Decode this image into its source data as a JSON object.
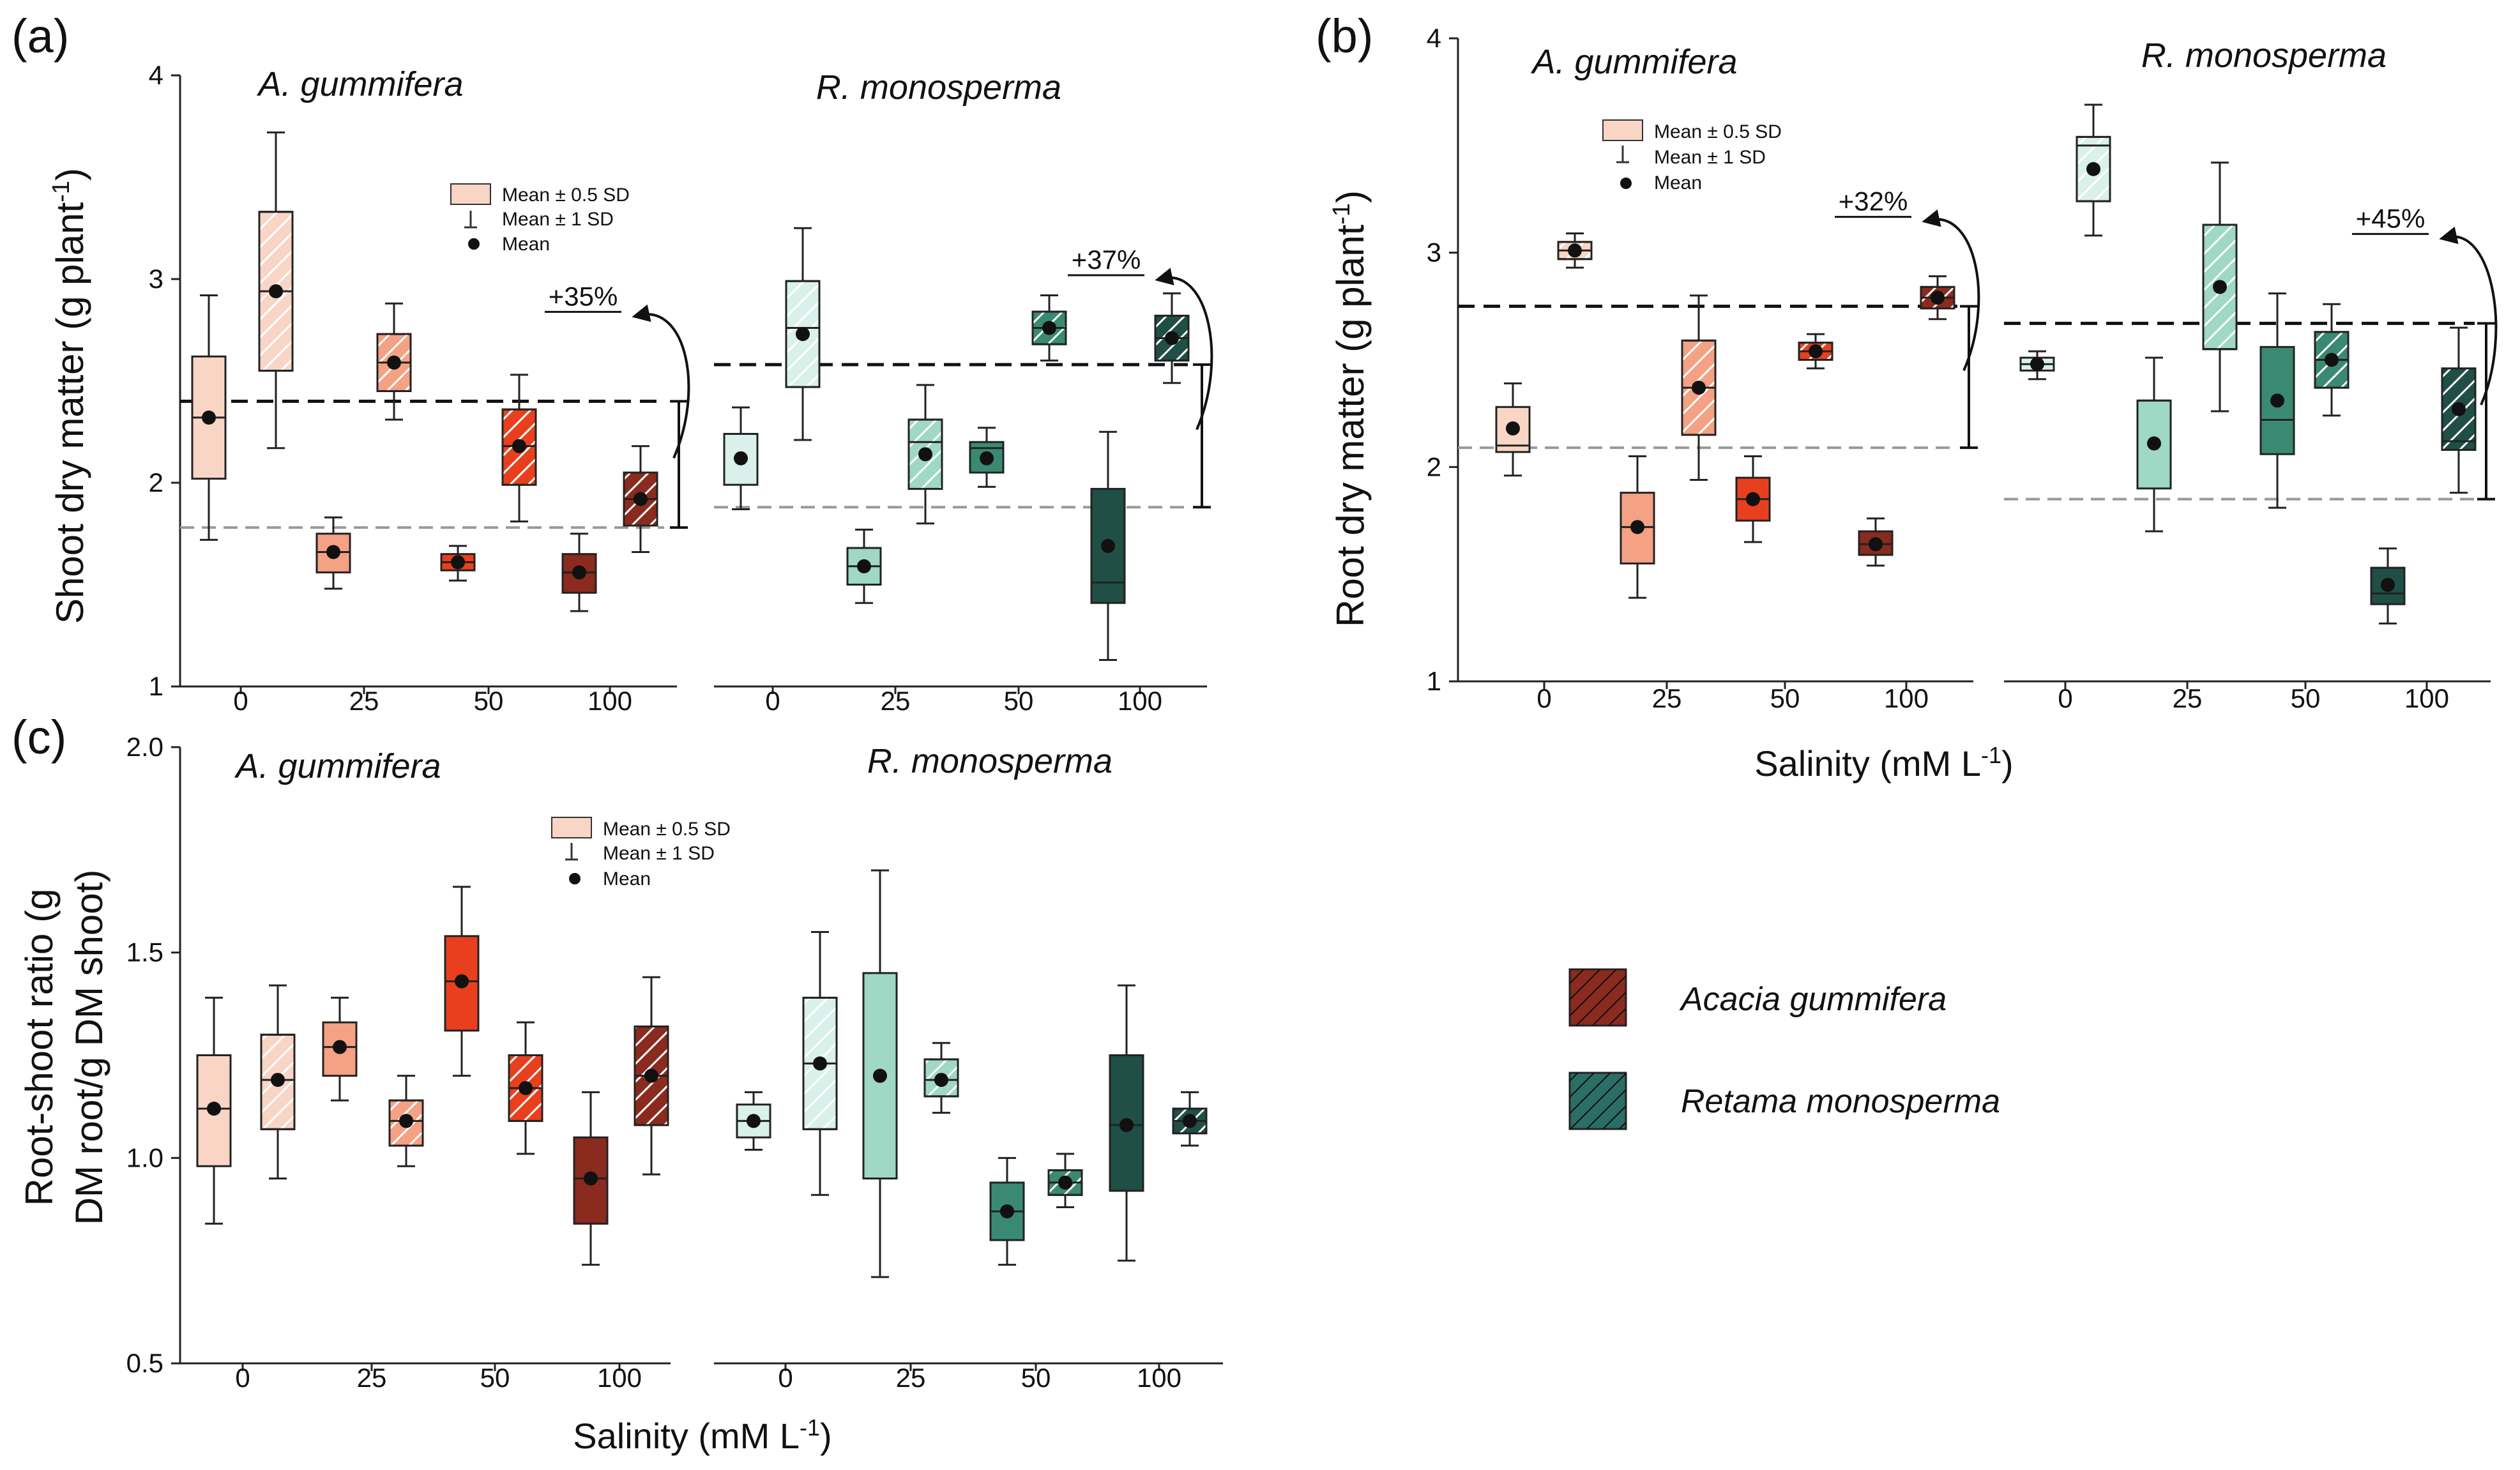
{
  "figure": {
    "xlabel_common": "Salinity (mM L",
    "xlabel_sup": "-1",
    "xlabel_end": ")",
    "legend_box_label": "Mean ± 0.5 SD",
    "legend_whisker_label": "Mean ± 1 SD",
    "legend_mean_label": "Mean",
    "species_legend": [
      {
        "label": "Acacia gummifera",
        "color": "#8b2a1e"
      },
      {
        "label": "Retama monosperma",
        "color": "#2a6e66"
      }
    ]
  },
  "colors": {
    "acacia": [
      "#f9d5c6",
      "#f4a184",
      "#e8401e",
      "#8b2a1e"
    ],
    "retama": [
      "#d9f1ea",
      "#9fd8c5",
      "#3a8a73",
      "#1f4f45"
    ],
    "black_dash": "#111111",
    "gray_dash": "#999999"
  },
  "chart_data": [
    {
      "type": "box",
      "panel_label": "(a)",
      "ylabel": "Shoot dry matter (g plant",
      "ylabel_sup": "-1",
      "ylabel_end": ")",
      "ylim": [
        1,
        4
      ],
      "yticks": [
        "1",
        "2",
        "3",
        "4"
      ],
      "xticks": [
        "0",
        "25",
        "50",
        "100"
      ],
      "groups": [
        {
          "species": "A. gummifera",
          "ref_black": 2.4,
          "ref_gray": 1.78,
          "annotation": "+35%",
          "boxes": [
            {
              "salinity": "0",
              "hatched": false,
              "mean": 2.32,
              "q1": 2.02,
              "q3": 2.62,
              "median": 2.32,
              "lo": 1.72,
              "hi": 2.92
            },
            {
              "salinity": "0",
              "hatched": true,
              "mean": 2.94,
              "q1": 2.55,
              "q3": 3.33,
              "median": 2.94,
              "lo": 2.17,
              "hi": 3.72
            },
            {
              "salinity": "25",
              "hatched": false,
              "mean": 1.66,
              "q1": 1.56,
              "q3": 1.75,
              "median": 1.66,
              "lo": 1.48,
              "hi": 1.83
            },
            {
              "salinity": "25",
              "hatched": true,
              "mean": 2.59,
              "q1": 2.45,
              "q3": 2.73,
              "median": 2.59,
              "lo": 2.31,
              "hi": 2.88
            },
            {
              "salinity": "50",
              "hatched": false,
              "mean": 1.61,
              "q1": 1.57,
              "q3": 1.65,
              "median": 1.61,
              "lo": 1.52,
              "hi": 1.69
            },
            {
              "salinity": "50",
              "hatched": true,
              "mean": 2.18,
              "q1": 1.99,
              "q3": 2.36,
              "median": 2.18,
              "lo": 1.81,
              "hi": 2.53
            },
            {
              "salinity": "100",
              "hatched": false,
              "mean": 1.56,
              "q1": 1.46,
              "q3": 1.65,
              "median": 1.56,
              "lo": 1.37,
              "hi": 1.75
            },
            {
              "salinity": "100",
              "hatched": true,
              "mean": 1.92,
              "q1": 1.79,
              "q3": 2.05,
              "median": 1.92,
              "lo": 1.66,
              "hi": 2.18
            }
          ]
        },
        {
          "species": "R. monosperma",
          "ref_black": 2.58,
          "ref_gray": 1.88,
          "annotation": "+37%",
          "boxes": [
            {
              "salinity": "0",
              "hatched": false,
              "mean": 2.12,
              "q1": 1.99,
              "q3": 2.24,
              "median": 2.24,
              "lo": 1.87,
              "hi": 2.37
            },
            {
              "salinity": "0",
              "hatched": true,
              "mean": 2.73,
              "q1": 2.47,
              "q3": 2.99,
              "median": 2.76,
              "lo": 2.21,
              "hi": 3.25
            },
            {
              "salinity": "25",
              "hatched": false,
              "mean": 1.59,
              "q1": 1.5,
              "q3": 1.68,
              "median": 1.59,
              "lo": 1.41,
              "hi": 1.77
            },
            {
              "salinity": "25",
              "hatched": true,
              "mean": 2.14,
              "q1": 1.97,
              "q3": 2.31,
              "median": 2.2,
              "lo": 1.8,
              "hi": 2.48
            },
            {
              "salinity": "50",
              "hatched": false,
              "mean": 2.12,
              "q1": 2.05,
              "q3": 2.2,
              "median": 2.17,
              "lo": 1.98,
              "hi": 2.27
            },
            {
              "salinity": "50",
              "hatched": true,
              "mean": 2.76,
              "q1": 2.68,
              "q3": 2.84,
              "median": 2.76,
              "lo": 2.6,
              "hi": 2.92
            },
            {
              "salinity": "100",
              "hatched": false,
              "mean": 1.69,
              "q1": 1.41,
              "q3": 1.97,
              "median": 1.51,
              "lo": 1.13,
              "hi": 2.25
            },
            {
              "salinity": "100",
              "hatched": true,
              "mean": 2.71,
              "q1": 2.6,
              "q3": 2.82,
              "median": 2.71,
              "lo": 2.49,
              "hi": 2.93
            }
          ]
        }
      ]
    },
    {
      "type": "box",
      "panel_label": "(b)",
      "ylabel": "Root dry matter (g plant",
      "ylabel_sup": "-1",
      "ylabel_end": ")",
      "xlabel": "Salinity (mM L-1)",
      "ylim": [
        1,
        4
      ],
      "yticks": [
        "1",
        "2",
        "3",
        "4"
      ],
      "xticks": [
        "0",
        "25",
        "50",
        "100"
      ],
      "groups": [
        {
          "species": "A. gummifera",
          "ref_black": 2.75,
          "ref_gray": 2.09,
          "annotation": "+32%",
          "boxes": [
            {
              "salinity": "0",
              "hatched": false,
              "mean": 2.18,
              "q1": 2.07,
              "q3": 2.28,
              "median": 2.1,
              "lo": 1.96,
              "hi": 2.39
            },
            {
              "salinity": "0",
              "hatched": true,
              "mean": 3.01,
              "q1": 2.97,
              "q3": 3.05,
              "median": 3.01,
              "lo": 2.93,
              "hi": 3.09
            },
            {
              "salinity": "25",
              "hatched": false,
              "mean": 1.72,
              "q1": 1.55,
              "q3": 1.88,
              "median": 1.72,
              "lo": 1.39,
              "hi": 2.05
            },
            {
              "salinity": "25",
              "hatched": true,
              "mean": 2.37,
              "q1": 2.15,
              "q3": 2.59,
              "median": 2.37,
              "lo": 1.94,
              "hi": 2.8
            },
            {
              "salinity": "50",
              "hatched": false,
              "mean": 1.85,
              "q1": 1.75,
              "q3": 1.95,
              "median": 1.85,
              "lo": 1.65,
              "hi": 2.05
            },
            {
              "salinity": "50",
              "hatched": true,
              "mean": 2.54,
              "q1": 2.5,
              "q3": 2.58,
              "median": 2.54,
              "lo": 2.46,
              "hi": 2.62
            },
            {
              "salinity": "100",
              "hatched": false,
              "mean": 1.64,
              "q1": 1.59,
              "q3": 1.7,
              "median": 1.64,
              "lo": 1.54,
              "hi": 1.76
            },
            {
              "salinity": "100",
              "hatched": true,
              "mean": 2.79,
              "q1": 2.74,
              "q3": 2.84,
              "median": 2.79,
              "lo": 2.69,
              "hi": 2.89
            }
          ]
        },
        {
          "species": "R. monosperma",
          "ref_black": 2.67,
          "ref_gray": 1.85,
          "annotation": "+45%",
          "boxes": [
            {
              "salinity": "0",
              "hatched": false,
              "mean": 2.48,
              "q1": 2.45,
              "q3": 2.51,
              "median": 2.48,
              "lo": 2.41,
              "hi": 2.54
            },
            {
              "salinity": "0",
              "hatched": true,
              "mean": 3.39,
              "q1": 3.24,
              "q3": 3.54,
              "median": 3.5,
              "lo": 3.08,
              "hi": 3.69
            },
            {
              "salinity": "25",
              "hatched": false,
              "mean": 2.11,
              "q1": 1.9,
              "q3": 2.31,
              "median": 2.31,
              "lo": 1.7,
              "hi": 2.51
            },
            {
              "salinity": "25",
              "hatched": true,
              "mean": 2.84,
              "q1": 2.55,
              "q3": 3.13,
              "median": 2.55,
              "lo": 2.26,
              "hi": 3.42
            },
            {
              "salinity": "50",
              "hatched": false,
              "mean": 2.31,
              "q1": 2.06,
              "q3": 2.56,
              "median": 2.22,
              "lo": 1.81,
              "hi": 2.81
            },
            {
              "salinity": "50",
              "hatched": true,
              "mean": 2.5,
              "q1": 2.37,
              "q3": 2.63,
              "median": 2.5,
              "lo": 2.24,
              "hi": 2.76
            },
            {
              "salinity": "100",
              "hatched": false,
              "mean": 1.45,
              "q1": 1.36,
              "q3": 1.53,
              "median": 1.41,
              "lo": 1.27,
              "hi": 1.62
            },
            {
              "salinity": "100",
              "hatched": true,
              "mean": 2.27,
              "q1": 2.08,
              "q3": 2.46,
              "median": 2.12,
              "lo": 1.88,
              "hi": 2.65
            }
          ]
        }
      ]
    },
    {
      "type": "box",
      "panel_label": "(c)",
      "ylabel_line1": "Root-shoot ratio (g",
      "ylabel_line2": "DM root/g DM shoot)",
      "xlabel": "Salinity (mM L-1)",
      "ylim": [
        0.5,
        2.0
      ],
      "yticks": [
        "0.5",
        "1.0",
        "1.5",
        "2.0"
      ],
      "xticks": [
        "0",
        "25",
        "50",
        "100"
      ],
      "groups": [
        {
          "species": "A. gummifera",
          "boxes": [
            {
              "salinity": "0",
              "hatched": false,
              "mean": 1.12,
              "q1": 0.98,
              "q3": 1.25,
              "median": 1.12,
              "lo": 0.84,
              "hi": 1.39
            },
            {
              "salinity": "0",
              "hatched": true,
              "mean": 1.19,
              "q1": 1.07,
              "q3": 1.3,
              "median": 1.19,
              "lo": 0.95,
              "hi": 1.42
            },
            {
              "salinity": "25",
              "hatched": false,
              "mean": 1.27,
              "q1": 1.2,
              "q3": 1.33,
              "median": 1.27,
              "lo": 1.14,
              "hi": 1.39
            },
            {
              "salinity": "25",
              "hatched": true,
              "mean": 1.09,
              "q1": 1.03,
              "q3": 1.14,
              "median": 1.09,
              "lo": 0.98,
              "hi": 1.2
            },
            {
              "salinity": "50",
              "hatched": false,
              "mean": 1.43,
              "q1": 1.31,
              "q3": 1.54,
              "median": 1.43,
              "lo": 1.2,
              "hi": 1.66
            },
            {
              "salinity": "50",
              "hatched": true,
              "mean": 1.17,
              "q1": 1.09,
              "q3": 1.25,
              "median": 1.17,
              "lo": 1.01,
              "hi": 1.33
            },
            {
              "salinity": "100",
              "hatched": false,
              "mean": 0.95,
              "q1": 0.84,
              "q3": 1.05,
              "median": 0.95,
              "lo": 0.74,
              "hi": 1.16
            },
            {
              "salinity": "100",
              "hatched": true,
              "mean": 1.2,
              "q1": 1.08,
              "q3": 1.32,
              "median": 1.2,
              "lo": 0.96,
              "hi": 1.44
            }
          ]
        },
        {
          "species": "R. monosperma",
          "boxes": [
            {
              "salinity": "0",
              "hatched": false,
              "mean": 1.09,
              "q1": 1.05,
              "q3": 1.13,
              "median": 1.09,
              "lo": 1.02,
              "hi": 1.16
            },
            {
              "salinity": "0",
              "hatched": true,
              "mean": 1.23,
              "q1": 1.07,
              "q3": 1.39,
              "median": 1.23,
              "lo": 0.91,
              "hi": 1.55
            },
            {
              "salinity": "25",
              "hatched": false,
              "mean": 1.2,
              "q1": 0.95,
              "q3": 1.45,
              "median": 0.95,
              "lo": 0.71,
              "hi": 1.7
            },
            {
              "salinity": "25",
              "hatched": true,
              "mean": 1.19,
              "q1": 1.15,
              "q3": 1.24,
              "median": 1.19,
              "lo": 1.11,
              "hi": 1.28
            },
            {
              "salinity": "50",
              "hatched": false,
              "mean": 0.87,
              "q1": 0.8,
              "q3": 0.94,
              "median": 0.87,
              "lo": 0.74,
              "hi": 1.0
            },
            {
              "salinity": "50",
              "hatched": true,
              "mean": 0.94,
              "q1": 0.91,
              "q3": 0.97,
              "median": 0.94,
              "lo": 0.88,
              "hi": 1.01
            },
            {
              "salinity": "100",
              "hatched": false,
              "mean": 1.08,
              "q1": 0.92,
              "q3": 1.25,
              "median": 1.08,
              "lo": 0.75,
              "hi": 1.42
            },
            {
              "salinity": "100",
              "hatched": true,
              "mean": 1.09,
              "q1": 1.06,
              "q3": 1.12,
              "median": 1.09,
              "lo": 1.03,
              "hi": 1.16
            }
          ]
        }
      ]
    }
  ]
}
